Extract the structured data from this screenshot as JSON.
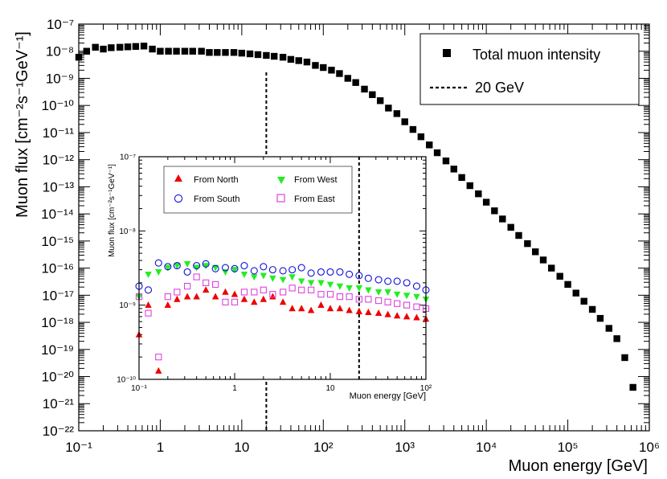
{
  "chart_data": [
    {
      "type": "scatter",
      "x_scale": "log",
      "y_scale": "log",
      "xlim": [
        0.1,
        1000000
      ],
      "ylim": [
        1e-22,
        1e-07
      ],
      "xlabel": "Muon energy [GeV]",
      "ylabel": "Muon flux [cm⁻²s⁻¹GeV⁻¹]",
      "x_tick_labels": [
        "10⁻¹",
        "1",
        "10",
        "10²",
        "10³",
        "10⁴",
        "10⁵",
        "10⁶"
      ],
      "y_tick_labels": [
        "10⁻²²",
        "10⁻²¹",
        "10⁻²⁰",
        "10⁻¹⁹",
        "10⁻¹⁸",
        "10⁻¹⁷",
        "10⁻¹⁶",
        "10⁻¹⁵",
        "10⁻¹⁴",
        "10⁻¹³",
        "10⁻¹²",
        "10⁻¹¹",
        "10⁻¹⁰",
        "10⁻⁹",
        "10⁻⁸",
        "10⁻⁷"
      ],
      "legend": {
        "placement": "top-right",
        "entries": [
          {
            "label": "Total muon intensity",
            "marker": "filled-square",
            "color": "#000000"
          },
          {
            "label": "20 GeV",
            "marker": "dashed-line",
            "color": "#000000"
          }
        ]
      },
      "vline": {
        "x": 20,
        "label": "20 GeV",
        "style": "dashed"
      },
      "series": [
        {
          "name": "Total muon intensity",
          "marker": "square",
          "color": "#000000",
          "points": [
            [
              0.1,
              6e-09
            ],
            [
              0.125,
              1e-08
            ],
            [
              0.16,
              1.4e-08
            ],
            [
              0.2,
              1.2e-08
            ],
            [
              0.25,
              1.35e-08
            ],
            [
              0.32,
              1.4e-08
            ],
            [
              0.4,
              1.45e-08
            ],
            [
              0.5,
              1.5e-08
            ],
            [
              0.63,
              1.55e-08
            ],
            [
              0.8,
              1.2e-08
            ],
            [
              1.0,
              1e-08
            ],
            [
              1.26,
              1e-08
            ],
            [
              1.58,
              1e-08
            ],
            [
              2.0,
              1e-08
            ],
            [
              2.5,
              1e-08
            ],
            [
              3.2,
              1e-08
            ],
            [
              4.0,
              9e-09
            ],
            [
              5.0,
              9e-09
            ],
            [
              6.3,
              9e-09
            ],
            [
              8.0,
              9e-09
            ],
            [
              10,
              8.5e-09
            ],
            [
              12.6,
              8e-09
            ],
            [
              15.8,
              7.5e-09
            ],
            [
              20,
              7e-09
            ],
            [
              25,
              6.5e-09
            ],
            [
              32,
              6e-09
            ],
            [
              40,
              5e-09
            ],
            [
              50,
              4.5e-09
            ],
            [
              63,
              4e-09
            ],
            [
              80,
              3e-09
            ],
            [
              100,
              2.5e-09
            ],
            [
              126,
              2e-09
            ],
            [
              158,
              1.5e-09
            ],
            [
              200,
              1e-09
            ],
            [
              250,
              7e-10
            ],
            [
              320,
              4e-10
            ],
            [
              400,
              2.5e-10
            ],
            [
              500,
              1.5e-10
            ],
            [
              630,
              8e-11
            ],
            [
              800,
              5e-11
            ],
            [
              1000,
              2.5e-11
            ],
            [
              1260,
              1.3e-11
            ],
            [
              1580,
              7e-12
            ],
            [
              2000,
              3.5e-12
            ],
            [
              2500,
              1.8e-12
            ],
            [
              3200,
              9e-13
            ],
            [
              4000,
              4.5e-13
            ],
            [
              5000,
              2.2e-13
            ],
            [
              6300,
              1.1e-13
            ],
            [
              8000,
              5.5e-14
            ],
            [
              10000,
              2.7e-14
            ],
            [
              12600,
              1.3e-14
            ],
            [
              15800,
              6.5e-15
            ],
            [
              20000,
              3.2e-15
            ],
            [
              25000,
              1.6e-15
            ],
            [
              32000,
              8e-16
            ],
            [
              40000,
              4e-16
            ],
            [
              50000,
              2e-16
            ],
            [
              63000,
              1e-16
            ],
            [
              80000,
              5e-17
            ],
            [
              100000,
              2.5e-17
            ],
            [
              126000,
              1.2e-17
            ],
            [
              158000,
              6e-18
            ],
            [
              200000,
              3e-18
            ],
            [
              250000,
              1.4e-18
            ],
            [
              320000,
              6e-19
            ],
            [
              400000,
              2.5e-19
            ],
            [
              500000,
              5e-20
            ],
            [
              630000,
              4e-21
            ]
          ]
        }
      ]
    },
    {
      "type": "scatter",
      "x_scale": "log",
      "y_scale": "log",
      "xlim": [
        0.1,
        100
      ],
      "ylim": [
        1e-10,
        1e-07
      ],
      "xlabel": "Muon energy [GeV]",
      "ylabel": "Muon flux [cm⁻²s⁻¹GeV⁻¹]",
      "x_tick_labels": [
        "10⁻¹",
        "1",
        "10",
        "10²"
      ],
      "y_tick_labels": [
        "10⁻¹⁰",
        "10⁻⁹",
        "10⁻⁸",
        "10⁻⁷"
      ],
      "legend": {
        "placement": "top",
        "entries": [
          {
            "label": "From North",
            "marker": "triangle-up",
            "color": "#ee0000"
          },
          {
            "label": "From West",
            "marker": "triangle-down",
            "color": "#22ee22"
          },
          {
            "label": "From South",
            "marker": "open-circle",
            "color": "#1010dd"
          },
          {
            "label": "From East",
            "marker": "open-square",
            "color": "#dd44dd"
          }
        ]
      },
      "vline": {
        "x": 20,
        "style": "dashed"
      },
      "series": [
        {
          "name": "From North",
          "marker": "triangle-up",
          "color": "#ee0000",
          "points": [
            [
              0.1,
              4e-10
            ],
            [
              0.125,
              1e-09
            ],
            [
              0.16,
              1.3e-10
            ],
            [
              0.2,
              1e-09
            ],
            [
              0.25,
              1.2e-09
            ],
            [
              0.32,
              1.3e-09
            ],
            [
              0.4,
              1.3e-09
            ],
            [
              0.5,
              1.6e-09
            ],
            [
              0.63,
              1.3e-09
            ],
            [
              0.8,
              1.5e-09
            ],
            [
              1.0,
              1.4e-09
            ],
            [
              1.26,
              1.2e-09
            ],
            [
              1.6,
              1.1e-09
            ],
            [
              2.0,
              1.2e-09
            ],
            [
              2.5,
              1.3e-09
            ],
            [
              3.2,
              1.1e-09
            ],
            [
              4.0,
              9e-10
            ],
            [
              5.0,
              9e-10
            ],
            [
              6.3,
              8.5e-10
            ],
            [
              8.0,
              1e-09
            ],
            [
              10,
              9e-10
            ],
            [
              12.6,
              9e-10
            ],
            [
              15.8,
              8.5e-10
            ],
            [
              20,
              8.2e-10
            ],
            [
              25,
              8e-10
            ],
            [
              32,
              7.8e-10
            ],
            [
              40,
              7.5e-10
            ],
            [
              50,
              7.2e-10
            ],
            [
              63,
              7e-10
            ],
            [
              80,
              6.8e-10
            ],
            [
              100,
              6.5e-10
            ]
          ]
        },
        {
          "name": "From West",
          "marker": "triangle-down",
          "color": "#22ee22",
          "points": [
            [
              0.1,
              1.3e-09
            ],
            [
              0.125,
              2.6e-09
            ],
            [
              0.16,
              2.8e-09
            ],
            [
              0.2,
              3.2e-09
            ],
            [
              0.25,
              3.4e-09
            ],
            [
              0.32,
              3.6e-09
            ],
            [
              0.4,
              3.2e-09
            ],
            [
              0.5,
              3.4e-09
            ],
            [
              0.63,
              3.2e-09
            ],
            [
              0.8,
              2.8e-09
            ],
            [
              1.0,
              3e-09
            ],
            [
              1.26,
              2.6e-09
            ],
            [
              1.6,
              2.4e-09
            ],
            [
              2.0,
              2.5e-09
            ],
            [
              2.5,
              2.3e-09
            ],
            [
              3.2,
              2.2e-09
            ],
            [
              4.0,
              2.4e-09
            ],
            [
              5.0,
              2.1e-09
            ],
            [
              6.3,
              2e-09
            ],
            [
              8.0,
              2e-09
            ],
            [
              10,
              1.9e-09
            ],
            [
              12.6,
              1.8e-09
            ],
            [
              15.8,
              1.7e-09
            ],
            [
              20,
              1.7e-09
            ],
            [
              25,
              1.6e-09
            ],
            [
              32,
              1.5e-09
            ],
            [
              40,
              1.5e-09
            ],
            [
              50,
              1.4e-09
            ],
            [
              63,
              1.35e-09
            ],
            [
              80,
              1.3e-09
            ],
            [
              100,
              1.2e-09
            ]
          ]
        },
        {
          "name": "From South",
          "marker": "open-circle",
          "color": "#1010dd",
          "points": [
            [
              0.1,
              1.8e-09
            ],
            [
              0.125,
              1.6e-09
            ],
            [
              0.16,
              3.7e-09
            ],
            [
              0.2,
              3.3e-09
            ],
            [
              0.25,
              3.4e-09
            ],
            [
              0.32,
              2.8e-09
            ],
            [
              0.4,
              3.4e-09
            ],
            [
              0.5,
              3.6e-09
            ],
            [
              0.63,
              3.1e-09
            ],
            [
              0.8,
              3.2e-09
            ],
            [
              1.0,
              3.1e-09
            ],
            [
              1.26,
              3.4e-09
            ],
            [
              1.6,
              2.9e-09
            ],
            [
              2.0,
              3.3e-09
            ],
            [
              2.5,
              3e-09
            ],
            [
              3.2,
              2.9e-09
            ],
            [
              4.0,
              3e-09
            ],
            [
              5.0,
              3.2e-09
            ],
            [
              6.3,
              2.7e-09
            ],
            [
              8.0,
              2.8e-09
            ],
            [
              10,
              2.8e-09
            ],
            [
              12.6,
              2.8e-09
            ],
            [
              15.8,
              2.6e-09
            ],
            [
              20,
              2.5e-09
            ],
            [
              25,
              2.3e-09
            ],
            [
              32,
              2.2e-09
            ],
            [
              40,
              2.1e-09
            ],
            [
              50,
              2.1e-09
            ],
            [
              63,
              2e-09
            ],
            [
              80,
              1.8e-09
            ],
            [
              100,
              1.6e-09
            ]
          ]
        },
        {
          "name": "From East",
          "marker": "open-square",
          "color": "#dd44dd",
          "points": [
            [
              0.1,
              1.3e-09
            ],
            [
              0.125,
              7.8e-10
            ],
            [
              0.16,
              2e-10
            ],
            [
              0.2,
              1.3e-09
            ],
            [
              0.25,
              1.5e-09
            ],
            [
              0.32,
              1.8e-09
            ],
            [
              0.4,
              2.4e-09
            ],
            [
              0.5,
              2e-09
            ],
            [
              0.63,
              1.9e-09
            ],
            [
              0.8,
              1.1e-09
            ],
            [
              1.0,
              1.1e-09
            ],
            [
              1.26,
              1.5e-09
            ],
            [
              1.6,
              1.5e-09
            ],
            [
              2.0,
              1.6e-09
            ],
            [
              2.5,
              1.4e-09
            ],
            [
              3.2,
              1.5e-09
            ],
            [
              4.0,
              1.7e-09
            ],
            [
              5.0,
              1.6e-09
            ],
            [
              6.3,
              1.6e-09
            ],
            [
              8.0,
              1.4e-09
            ],
            [
              10,
              1.4e-09
            ],
            [
              12.6,
              1.3e-09
            ],
            [
              15.8,
              1.3e-09
            ],
            [
              20,
              1.2e-09
            ],
            [
              25,
              1.2e-09
            ],
            [
              32,
              1.15e-09
            ],
            [
              40,
              1.1e-09
            ],
            [
              50,
              1.05e-09
            ],
            [
              63,
              1e-09
            ],
            [
              80,
              9.5e-10
            ],
            [
              100,
              9e-10
            ]
          ]
        }
      ]
    }
  ]
}
